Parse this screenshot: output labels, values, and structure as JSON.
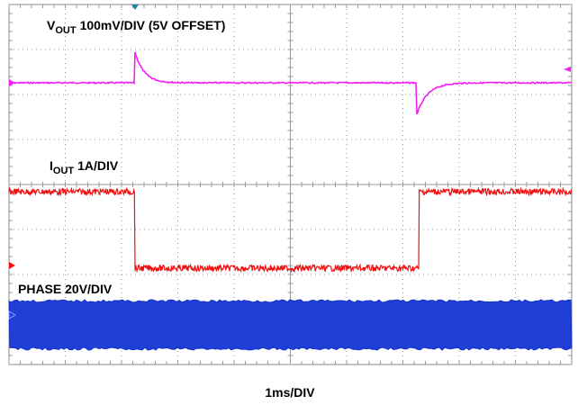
{
  "traces": [
    {
      "symbol": "V",
      "subscript": "OUT",
      "scale": "100mV/DIV (5V OFFSET)"
    },
    {
      "symbol": "I",
      "subscript": "OUT",
      "scale": "1A/DIV"
    },
    {
      "label": "PHASE 20V/DIV"
    }
  ],
  "time_scale": "1ms/DIV"
}
